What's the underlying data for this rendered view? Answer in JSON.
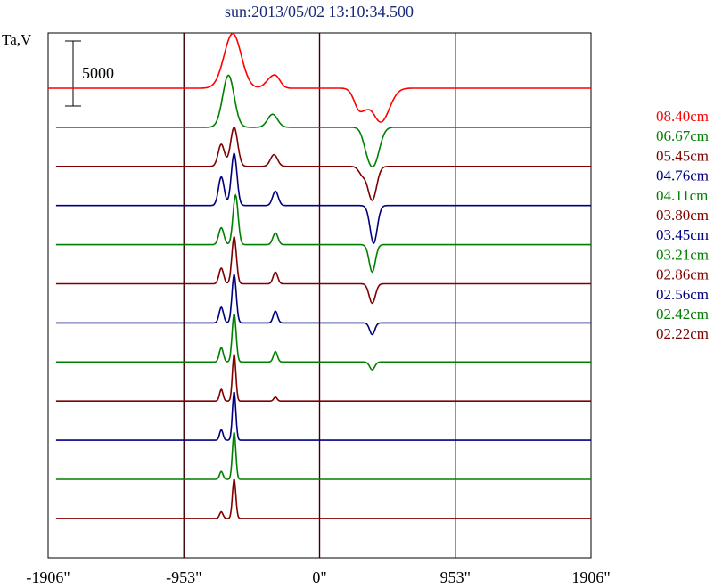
{
  "title": "sun:2013/05/02 13:10:34.500",
  "chart_data": {
    "type": "line",
    "title": "sun:2013/05/02 13:10:34.500",
    "ylabel": "Ta,V",
    "scale_bar_label": "5000",
    "scale_bar_value": 5000,
    "xlim": [
      -1906,
      1906
    ],
    "x_ticks": [
      -1906,
      -953,
      0,
      953,
      1906
    ],
    "x_tick_labels": [
      "-1906\"",
      "-953\"",
      "0\"",
      "953\"",
      "1906\""
    ],
    "vertical_guides": [
      -953,
      0,
      953
    ],
    "grid": false,
    "legend_position": "right",
    "series": [
      {
        "name": "08.40cm",
        "color": "#ff0000",
        "peaks": [
          [
            -610,
            4200,
            60
          ],
          [
            -340,
            700,
            40
          ],
          [
            -300,
            500,
            30
          ],
          [
            290,
            -2000,
            40
          ],
          [
            430,
            -2600,
            60
          ],
          [
            300,
            400,
            25
          ]
        ]
      },
      {
        "name": "06.67cm",
        "color": "#008000",
        "peaks": [
          [
            -640,
            4000,
            40
          ],
          [
            -330,
            1000,
            35
          ],
          [
            380,
            -2800,
            40
          ],
          [
            330,
            -800,
            30
          ]
        ]
      },
      {
        "name": "05.45cm",
        "color": "#800000",
        "peaks": [
          [
            -690,
            1700,
            22
          ],
          [
            -600,
            3000,
            25
          ],
          [
            -320,
            900,
            25
          ],
          [
            370,
            -2600,
            30
          ],
          [
            300,
            -600,
            25
          ]
        ]
      },
      {
        "name": "04.76cm",
        "color": "#000080",
        "peaks": [
          [
            -690,
            2200,
            20
          ],
          [
            -600,
            4000,
            20
          ],
          [
            -310,
            1100,
            20
          ],
          [
            380,
            -2900,
            25
          ]
        ]
      },
      {
        "name": "04.11cm",
        "color": "#008000",
        "peaks": [
          [
            -690,
            1300,
            18
          ],
          [
            -590,
            3800,
            18
          ],
          [
            -310,
            900,
            18
          ],
          [
            370,
            -2100,
            22
          ]
        ]
      },
      {
        "name": "03.80cm",
        "color": "#800000",
        "peaks": [
          [
            -690,
            1200,
            16
          ],
          [
            -600,
            3600,
            16
          ],
          [
            -310,
            900,
            16
          ],
          [
            370,
            -1500,
            22
          ]
        ]
      },
      {
        "name": "03.45cm",
        "color": "#000080",
        "peaks": [
          [
            -690,
            1200,
            15
          ],
          [
            -600,
            3700,
            15
          ],
          [
            -310,
            900,
            15
          ],
          [
            370,
            -900,
            18
          ]
        ]
      },
      {
        "name": "03.21cm",
        "color": "#008000",
        "peaks": [
          [
            -690,
            1100,
            14
          ],
          [
            -600,
            3700,
            14
          ],
          [
            -310,
            800,
            14
          ],
          [
            370,
            -600,
            18
          ]
        ]
      },
      {
        "name": "02.86cm",
        "color": "#800000",
        "peaks": [
          [
            -690,
            900,
            12
          ],
          [
            -600,
            3600,
            12
          ],
          [
            -310,
            300,
            12
          ]
        ]
      },
      {
        "name": "02.56cm",
        "color": "#000080",
        "peaks": [
          [
            -690,
            800,
            12
          ],
          [
            -600,
            3700,
            12
          ]
        ]
      },
      {
        "name": "02.42cm",
        "color": "#008000",
        "peaks": [
          [
            -690,
            600,
            12
          ],
          [
            -600,
            3600,
            12
          ]
        ]
      },
      {
        "name": "02.22cm",
        "color": "#800000",
        "peaks": [
          [
            -690,
            500,
            12
          ],
          [
            -600,
            3000,
            12
          ]
        ]
      }
    ]
  }
}
